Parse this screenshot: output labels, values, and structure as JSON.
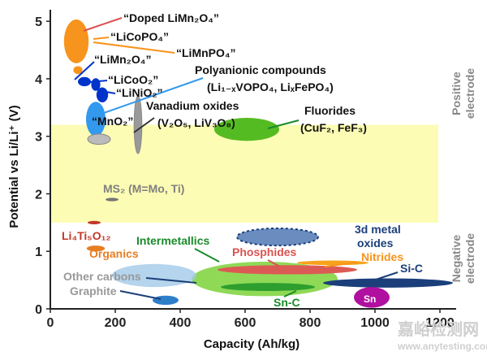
{
  "chart_data": {
    "type": "scatter",
    "xlabel": "Capacity (Ah/kg)",
    "ylabel": "Potential vs Li/Li⁺ (V)",
    "xlim": [
      0,
      1250
    ],
    "ylim": [
      0,
      5.2
    ],
    "xticks": [
      "0",
      "200",
      "400",
      "600",
      "800",
      "1000",
      "1200"
    ],
    "xtick_values": [
      0,
      200,
      400,
      600,
      800,
      1000,
      1200
    ],
    "yticks": [
      "0",
      "1",
      "2",
      "3",
      "4",
      "5"
    ],
    "ytick_values": [
      0,
      1,
      2,
      3,
      4,
      5
    ],
    "regions": [
      {
        "label": "Positive electrode",
        "y": [
          3.2,
          5.2
        ]
      },
      {
        "label": "Negative electrode",
        "y": [
          0,
          1.5
        ]
      }
    ],
    "band": {
      "y": [
        1.5,
        3.2
      ],
      "color": "#fcfcb4"
    },
    "materials": [
      {
        "id": "licopo4",
        "name": "“LiCoPO4”",
        "x": 80,
        "y": 4.65,
        "rx": 38,
        "ry": 0.38,
        "color": "#f7941d"
      },
      {
        "id": "dopedlimn2o4",
        "name": "“Doped LiMn2O4”",
        "x": 85,
        "y": 4.15,
        "rx": 14,
        "ry": 0.07,
        "color": "#f7941d"
      },
      {
        "id": "limn2o4",
        "name": "“LiMn2O4”",
        "x": 105,
        "y": 3.95,
        "rx": 20,
        "ry": 0.08,
        "color": "#0033cc"
      },
      {
        "id": "licoo2",
        "name": "“LiCoO2”",
        "x": 140,
        "y": 3.9,
        "rx": 14,
        "ry": 0.11,
        "color": "#0033cc"
      },
      {
        "id": "linio2",
        "name": "“LiNiO2”",
        "x": 160,
        "y": 3.72,
        "rx": 18,
        "ry": 0.13,
        "color": "#0033cc"
      },
      {
        "id": "polyanionic",
        "name": "Polyanionic compounds",
        "x": 140,
        "y": 3.3,
        "rx": 30,
        "ry": 0.3,
        "color": "#3399ee"
      },
      {
        "id": "mno2",
        "name": "“MnO2”",
        "x": 150,
        "y": 2.95,
        "rx": 35,
        "ry": 0.09,
        "color": "#bbbbbb"
      },
      {
        "id": "vanadium",
        "name": "Vanadium oxides",
        "x": 270,
        "y": 3.2,
        "rx": 12,
        "ry": 0.5,
        "color": "#999999"
      },
      {
        "id": "fluorides",
        "name": "Fluorides",
        "x": 605,
        "y": 3.12,
        "rx": 100,
        "ry": 0.2,
        "color": "#55bb22"
      },
      {
        "id": "ms2",
        "name": "MS2 (M=Mo, Ti)",
        "x": 190,
        "y": 1.9,
        "rx": 20,
        "ry": 0.03,
        "color": "#777777"
      },
      {
        "id": "li4ti5o12",
        "name": "Li4Ti5O12",
        "x": 135,
        "y": 1.5,
        "rx": 20,
        "ry": 0.03,
        "color": "#c0392b"
      },
      {
        "id": "organics",
        "name": "Organics",
        "x": 140,
        "y": 1.05,
        "rx": 28,
        "ry": 0.05,
        "color": "#e67e22"
      },
      {
        "id": "3dmetal",
        "name": "3d metal oxides",
        "x": 700,
        "y": 1.25,
        "rx": 125,
        "ry": 0.15,
        "color": "#6a8cbf"
      },
      {
        "id": "intermetallics",
        "name": "Intermetallics",
        "x": 660,
        "y": 0.52,
        "rx": 225,
        "ry": 0.3,
        "color": "#7bd23a"
      },
      {
        "id": "phosphides",
        "name": "Phosphides",
        "x": 730,
        "y": 0.68,
        "rx": 215,
        "ry": 0.08,
        "color": "#dc5a54"
      },
      {
        "id": "nitrides",
        "name": "Nitrides",
        "x": 870,
        "y": 0.8,
        "rx": 110,
        "ry": 0.04,
        "color": "#f7a21b"
      },
      {
        "id": "othercarbons",
        "name": "Other carbons",
        "x": 320,
        "y": 0.58,
        "rx": 130,
        "ry": 0.2,
        "color": "#a3c9e8"
      },
      {
        "id": "graphite",
        "name": "Graphite",
        "x": 355,
        "y": 0.15,
        "rx": 40,
        "ry": 0.08,
        "color": "#2e7fc9"
      },
      {
        "id": "snc",
        "name": "Sn-C",
        "x": 670,
        "y": 0.38,
        "rx": 145,
        "ry": 0.07,
        "color": "#2e9f2e"
      },
      {
        "id": "sic",
        "name": "Si-C",
        "x": 1040,
        "y": 0.45,
        "rx": 200,
        "ry": 0.08,
        "color": "#1b3f7a"
      },
      {
        "id": "sn",
        "name": "Sn",
        "x": 990,
        "y": 0.2,
        "rx": 55,
        "ry": 0.18,
        "color": "#b0109f"
      }
    ]
  },
  "labels": {
    "doped_limn2o4": "“Doped LiMn₂O₄”",
    "licopo4": "“LiCoPO₄”",
    "limnpo4": "“LiMnPO₄”",
    "limn2o4": "“LiMn₂O₄”",
    "licoo2": "“LiCoO₂”",
    "linio2": "“LiNiO₂”",
    "polyanionic": "Polyanionic compounds",
    "polyanionic_formula": "(Li₁₋ₓVOPO₄, LiₓFePO₄)",
    "vanadium": "Vanadium oxides",
    "mno2": "“MnO₂”",
    "vanadium_formula": "(V₂O₅, LiV₃O₈)",
    "fluorides": "Fluorides",
    "fluorides_formula": "(CuF₂, FeF₃)",
    "ms2": "MS₂ (M=Mo, Ti)",
    "li4ti5o12": "Li₄Ti₅O₁₂",
    "organics": "Organics",
    "intermetallics": "Intermetallics",
    "phosphides": "Phosphides",
    "metal_oxides_1": "3d metal",
    "metal_oxides_2": "oxides",
    "nitrides": "Nitrides",
    "other_carbons": "Other carbons",
    "graphite": "Graphite",
    "sic": "Si-C",
    "snc": "Sn-C",
    "sn": "Sn",
    "positive_1": "Positive",
    "positive_2": "electrode",
    "negative_1": "Negative",
    "negative_2": "electrode",
    "watermark": "嘉峪检测网",
    "watermark_url": "www.anytesting.com"
  }
}
